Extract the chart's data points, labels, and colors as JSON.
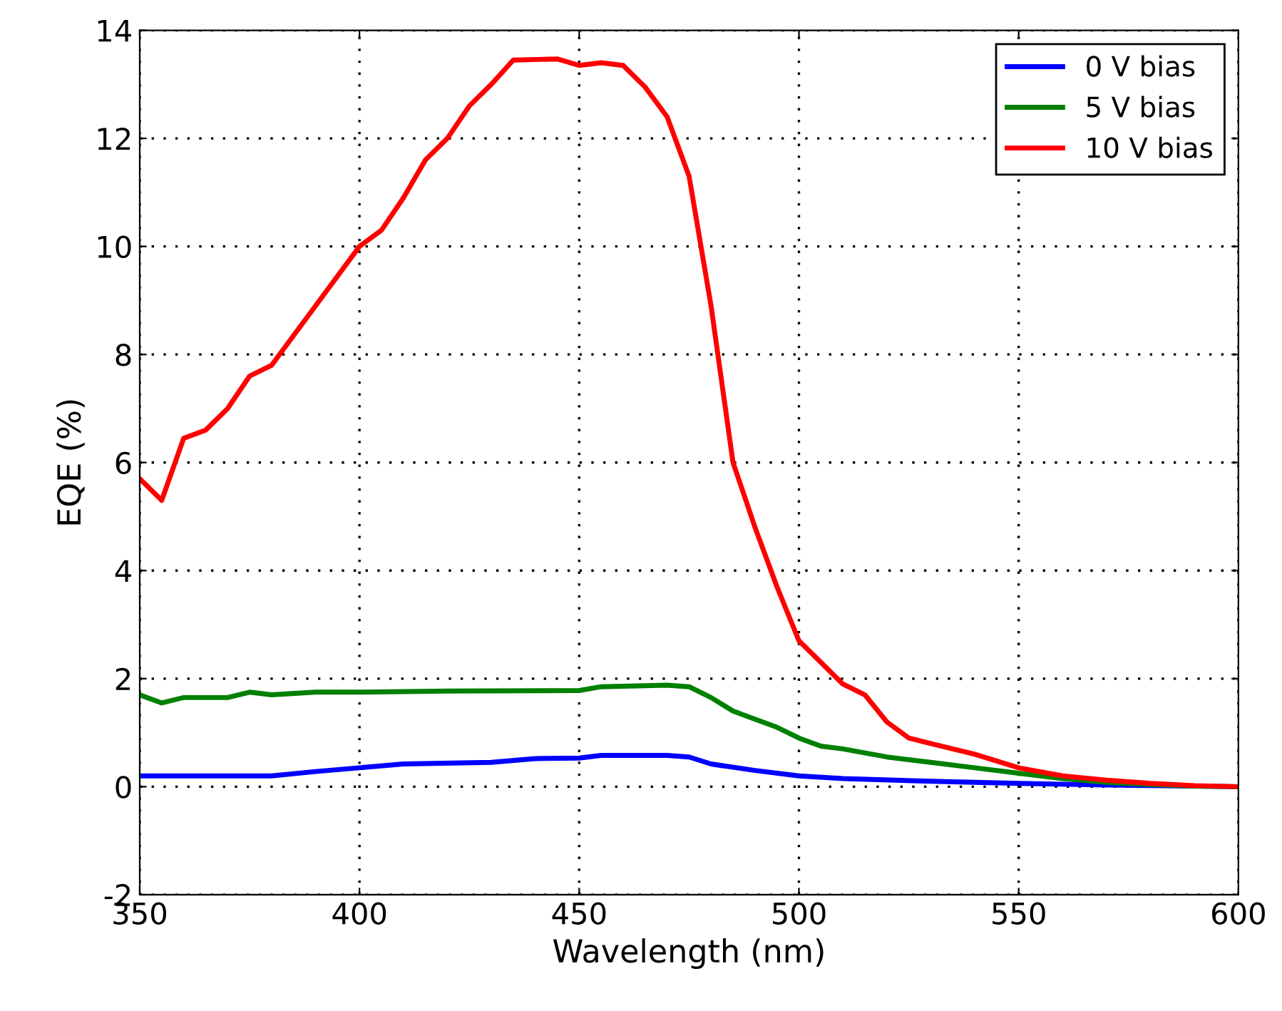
{
  "chart_data": {
    "type": "line",
    "xlabel": "Wavelength (nm)",
    "ylabel": "EQE (%)",
    "xlim": [
      350,
      600
    ],
    "xticks": [
      350,
      400,
      450,
      500,
      550,
      600
    ],
    "ylim": [
      -2,
      14
    ],
    "yticks": [
      -2,
      0,
      2,
      4,
      6,
      8,
      10,
      12,
      14
    ],
    "grid": true,
    "legend": "top right",
    "line_style": "solid",
    "marker": "none",
    "series": [
      {
        "name": "0 V bias",
        "color": "#0000ff",
        "x": [
          350,
          380,
          390,
          400,
          410,
          430,
          440,
          450,
          455,
          470,
          475,
          480,
          490,
          500,
          510,
          530,
          550,
          570,
          600
        ],
        "values": [
          0.2,
          0.2,
          0.28,
          0.35,
          0.42,
          0.45,
          0.52,
          0.53,
          0.58,
          0.58,
          0.55,
          0.42,
          0.3,
          0.2,
          0.15,
          0.1,
          0.06,
          0.03,
          0
        ]
      },
      {
        "name": "5 V bias",
        "color": "#008000",
        "x": [
          350,
          355,
          360,
          370,
          375,
          380,
          390,
          400,
          420,
          450,
          455,
          470,
          475,
          480,
          485,
          490,
          495,
          500,
          505,
          510,
          520,
          530,
          540,
          550,
          560,
          570,
          580,
          590,
          600
        ],
        "values": [
          1.7,
          1.55,
          1.65,
          1.65,
          1.75,
          1.7,
          1.75,
          1.75,
          1.77,
          1.78,
          1.85,
          1.88,
          1.85,
          1.65,
          1.4,
          1.25,
          1.1,
          0.9,
          0.75,
          0.7,
          0.55,
          0.45,
          0.35,
          0.25,
          0.15,
          0.08,
          0.04,
          0.01,
          0
        ]
      },
      {
        "name": "10 V bias",
        "color": "#ff0000",
        "x": [
          350,
          355,
          360,
          365,
          370,
          375,
          380,
          390,
          400,
          405,
          410,
          415,
          420,
          425,
          430,
          435,
          445,
          450,
          455,
          460,
          465,
          470,
          475,
          480,
          485,
          490,
          495,
          500,
          505,
          510,
          515,
          520,
          525,
          530,
          540,
          550,
          560,
          570,
          580,
          590,
          600
        ],
        "values": [
          5.7,
          5.3,
          6.45,
          6.6,
          7.0,
          7.6,
          7.8,
          8.9,
          10.0,
          10.3,
          10.9,
          11.6,
          12.0,
          12.6,
          13.0,
          13.45,
          13.47,
          13.35,
          13.4,
          13.35,
          12.95,
          12.4,
          11.3,
          8.9,
          6.0,
          4.8,
          3.7,
          2.7,
          2.3,
          1.9,
          1.7,
          1.2,
          0.9,
          0.8,
          0.6,
          0.35,
          0.2,
          0.12,
          0.06,
          0.02,
          0
        ]
      }
    ]
  }
}
